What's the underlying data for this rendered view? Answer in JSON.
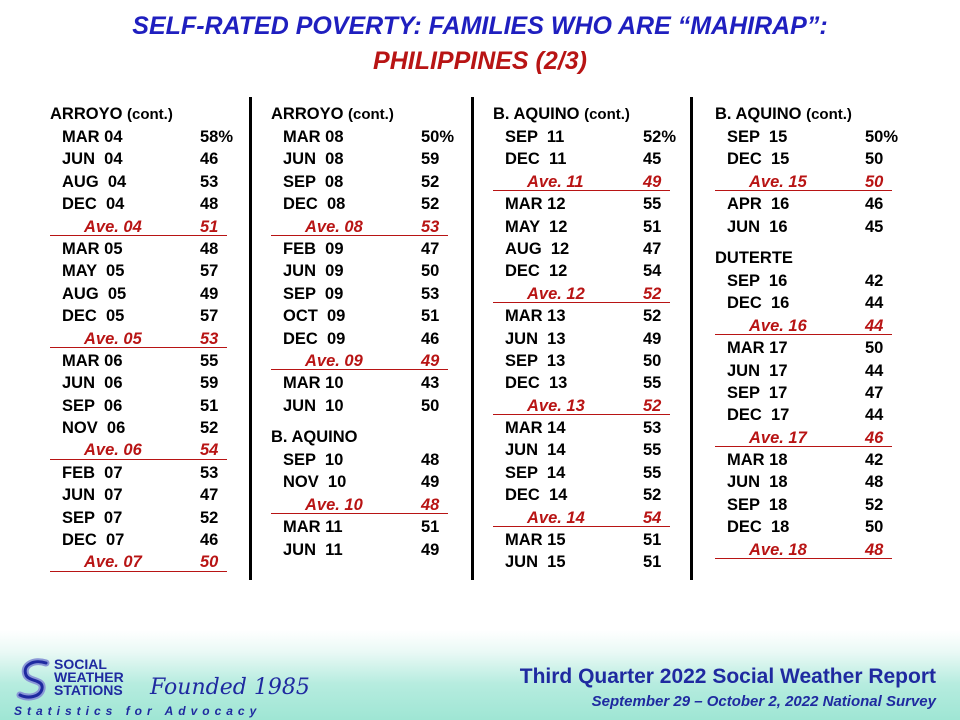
{
  "title": {
    "line1": "SELF-RATED POVERTY: FAMILIES WHO ARE “MAHIRAP”:",
    "line2_main": "PHILIPPINES",
    "line2_part": " (2/3)"
  },
  "columns": [
    {
      "sections": [
        {
          "name": "ARROYO",
          "suffix": "(cont.)",
          "rows": [
            {
              "period": "MAR 04",
              "value": "58%",
              "ave": false
            },
            {
              "period": "JUN  04",
              "value": "46",
              "ave": false
            },
            {
              "period": "AUG  04",
              "value": "53",
              "ave": false
            },
            {
              "period": "DEC  04",
              "value": "48",
              "ave": false
            },
            {
              "period": "Ave. 04",
              "value": "51",
              "ave": true
            },
            {
              "period": "MAR 05",
              "value": "48",
              "ave": false
            },
            {
              "period": "MAY  05",
              "value": "57",
              "ave": false
            },
            {
              "period": "AUG  05",
              "value": "49",
              "ave": false
            },
            {
              "period": "DEC  05",
              "value": "57",
              "ave": false
            },
            {
              "period": "Ave. 05",
              "value": "53",
              "ave": true
            },
            {
              "period": "MAR 06",
              "value": "55",
              "ave": false
            },
            {
              "period": "JUN  06",
              "value": "59",
              "ave": false
            },
            {
              "period": "SEP  06",
              "value": "51",
              "ave": false
            },
            {
              "period": "NOV  06",
              "value": "52",
              "ave": false
            },
            {
              "period": "Ave. 06",
              "value": "54",
              "ave": true
            },
            {
              "period": "FEB  07",
              "value": "53",
              "ave": false
            },
            {
              "period": "JUN  07",
              "value": "47",
              "ave": false
            },
            {
              "period": "SEP  07",
              "value": "52",
              "ave": false
            },
            {
              "period": "DEC  07",
              "value": "46",
              "ave": false
            },
            {
              "period": "Ave. 07",
              "value": "50",
              "ave": true
            }
          ]
        }
      ]
    },
    {
      "sections": [
        {
          "name": "ARROYO",
          "suffix": "(cont.)",
          "rows": [
            {
              "period": "MAR 08",
              "value": "50%",
              "ave": false
            },
            {
              "period": "JUN  08",
              "value": "59",
              "ave": false
            },
            {
              "period": "SEP  08",
              "value": "52",
              "ave": false
            },
            {
              "period": "DEC  08",
              "value": "52",
              "ave": false
            },
            {
              "period": "Ave. 08",
              "value": "53",
              "ave": true
            },
            {
              "period": "FEB  09",
              "value": "47",
              "ave": false
            },
            {
              "period": "JUN  09",
              "value": "50",
              "ave": false
            },
            {
              "period": "SEP  09",
              "value": "53",
              "ave": false
            },
            {
              "period": "OCT  09",
              "value": "51",
              "ave": false
            },
            {
              "period": "DEC  09",
              "value": "46",
              "ave": false
            },
            {
              "period": "Ave. 09",
              "value": "49",
              "ave": true
            },
            {
              "period": "MAR 10",
              "value": "43",
              "ave": false
            },
            {
              "period": "JUN  10",
              "value": "50",
              "ave": false
            }
          ]
        },
        {
          "name": "B. AQUINO",
          "suffix": "",
          "rows": [
            {
              "period": "SEP  10",
              "value": "48",
              "ave": false
            },
            {
              "period": "NOV  10",
              "value": "49",
              "ave": false
            },
            {
              "period": "Ave. 10",
              "value": "48",
              "ave": true
            },
            {
              "period": "MAR 11",
              "value": "51",
              "ave": false
            },
            {
              "period": "JUN  11",
              "value": "49",
              "ave": false
            }
          ]
        }
      ]
    },
    {
      "sections": [
        {
          "name": "B. AQUINO",
          "suffix": "(cont.)",
          "rows": [
            {
              "period": "SEP  11",
              "value": "52%",
              "ave": false
            },
            {
              "period": "DEC  11",
              "value": "45",
              "ave": false
            },
            {
              "period": "Ave. 11",
              "value": "49",
              "ave": true
            },
            {
              "period": "MAR 12",
              "value": "55",
              "ave": false
            },
            {
              "period": "MAY  12",
              "value": "51",
              "ave": false
            },
            {
              "period": "AUG  12",
              "value": "47",
              "ave": false
            },
            {
              "period": "DEC  12",
              "value": "54",
              "ave": false
            },
            {
              "period": "Ave. 12",
              "value": "52",
              "ave": true
            },
            {
              "period": "MAR 13",
              "value": "52",
              "ave": false
            },
            {
              "period": "JUN  13",
              "value": "49",
              "ave": false
            },
            {
              "period": "SEP  13",
              "value": "50",
              "ave": false
            },
            {
              "period": "DEC  13",
              "value": "55",
              "ave": false
            },
            {
              "period": "Ave. 13",
              "value": "52",
              "ave": true
            },
            {
              "period": "MAR 14",
              "value": "53",
              "ave": false
            },
            {
              "period": "JUN  14",
              "value": "55",
              "ave": false
            },
            {
              "period": "SEP  14",
              "value": "55",
              "ave": false
            },
            {
              "period": "DEC  14",
              "value": "52",
              "ave": false
            },
            {
              "period": "Ave. 14",
              "value": "54",
              "ave": true
            },
            {
              "period": "MAR 15",
              "value": "51",
              "ave": false
            },
            {
              "period": "JUN  15",
              "value": "51",
              "ave": false
            }
          ]
        }
      ]
    },
    {
      "sections": [
        {
          "name": "B. AQUINO",
          "suffix": "(cont.)",
          "rows": [
            {
              "period": "SEP  15",
              "value": "50%",
              "ave": false
            },
            {
              "period": "DEC  15",
              "value": "50",
              "ave": false
            },
            {
              "period": "Ave. 15",
              "value": "50",
              "ave": true
            },
            {
              "period": "APR  16",
              "value": "46",
              "ave": false
            },
            {
              "period": "JUN  16",
              "value": "45",
              "ave": false
            }
          ]
        },
        {
          "name": "DUTERTE",
          "suffix": "",
          "rows": [
            {
              "period": "SEP  16",
              "value": "42",
              "ave": false
            },
            {
              "period": "DEC  16",
              "value": "44",
              "ave": false
            },
            {
              "period": "Ave. 16",
              "value": "44",
              "ave": true
            },
            {
              "period": "MAR 17",
              "value": "50",
              "ave": false
            },
            {
              "period": "JUN  17",
              "value": "44",
              "ave": false
            },
            {
              "period": "SEP  17",
              "value": "47",
              "ave": false
            },
            {
              "period": "DEC  17",
              "value": "44",
              "ave": false
            },
            {
              "period": "Ave. 17",
              "value": "46",
              "ave": true
            },
            {
              "period": "MAR 18",
              "value": "42",
              "ave": false
            },
            {
              "period": "JUN  18",
              "value": "48",
              "ave": false
            },
            {
              "period": "SEP  18",
              "value": "52",
              "ave": false
            },
            {
              "period": "DEC  18",
              "value": "50",
              "ave": false
            },
            {
              "period": "Ave. 18",
              "value": "48",
              "ave": true
            }
          ]
        }
      ]
    }
  ],
  "footer": {
    "report_title": "Third Quarter 2022 Social Weather Report",
    "survey_dates": "September 29 – October 2, 2022 National Survey",
    "logo": {
      "line1": "SOCIAL",
      "line2": "WEATHER",
      "line3": "STATIONS",
      "founded": "Founded 1985",
      "tagline": "Statistics for Advocacy"
    }
  },
  "colors": {
    "title_blue": "#1f1fbf",
    "title_red": "#b81414",
    "average_red": "#b81414",
    "footer_blue": "#1f2aa0",
    "footer_band": "#9fe6d4"
  }
}
